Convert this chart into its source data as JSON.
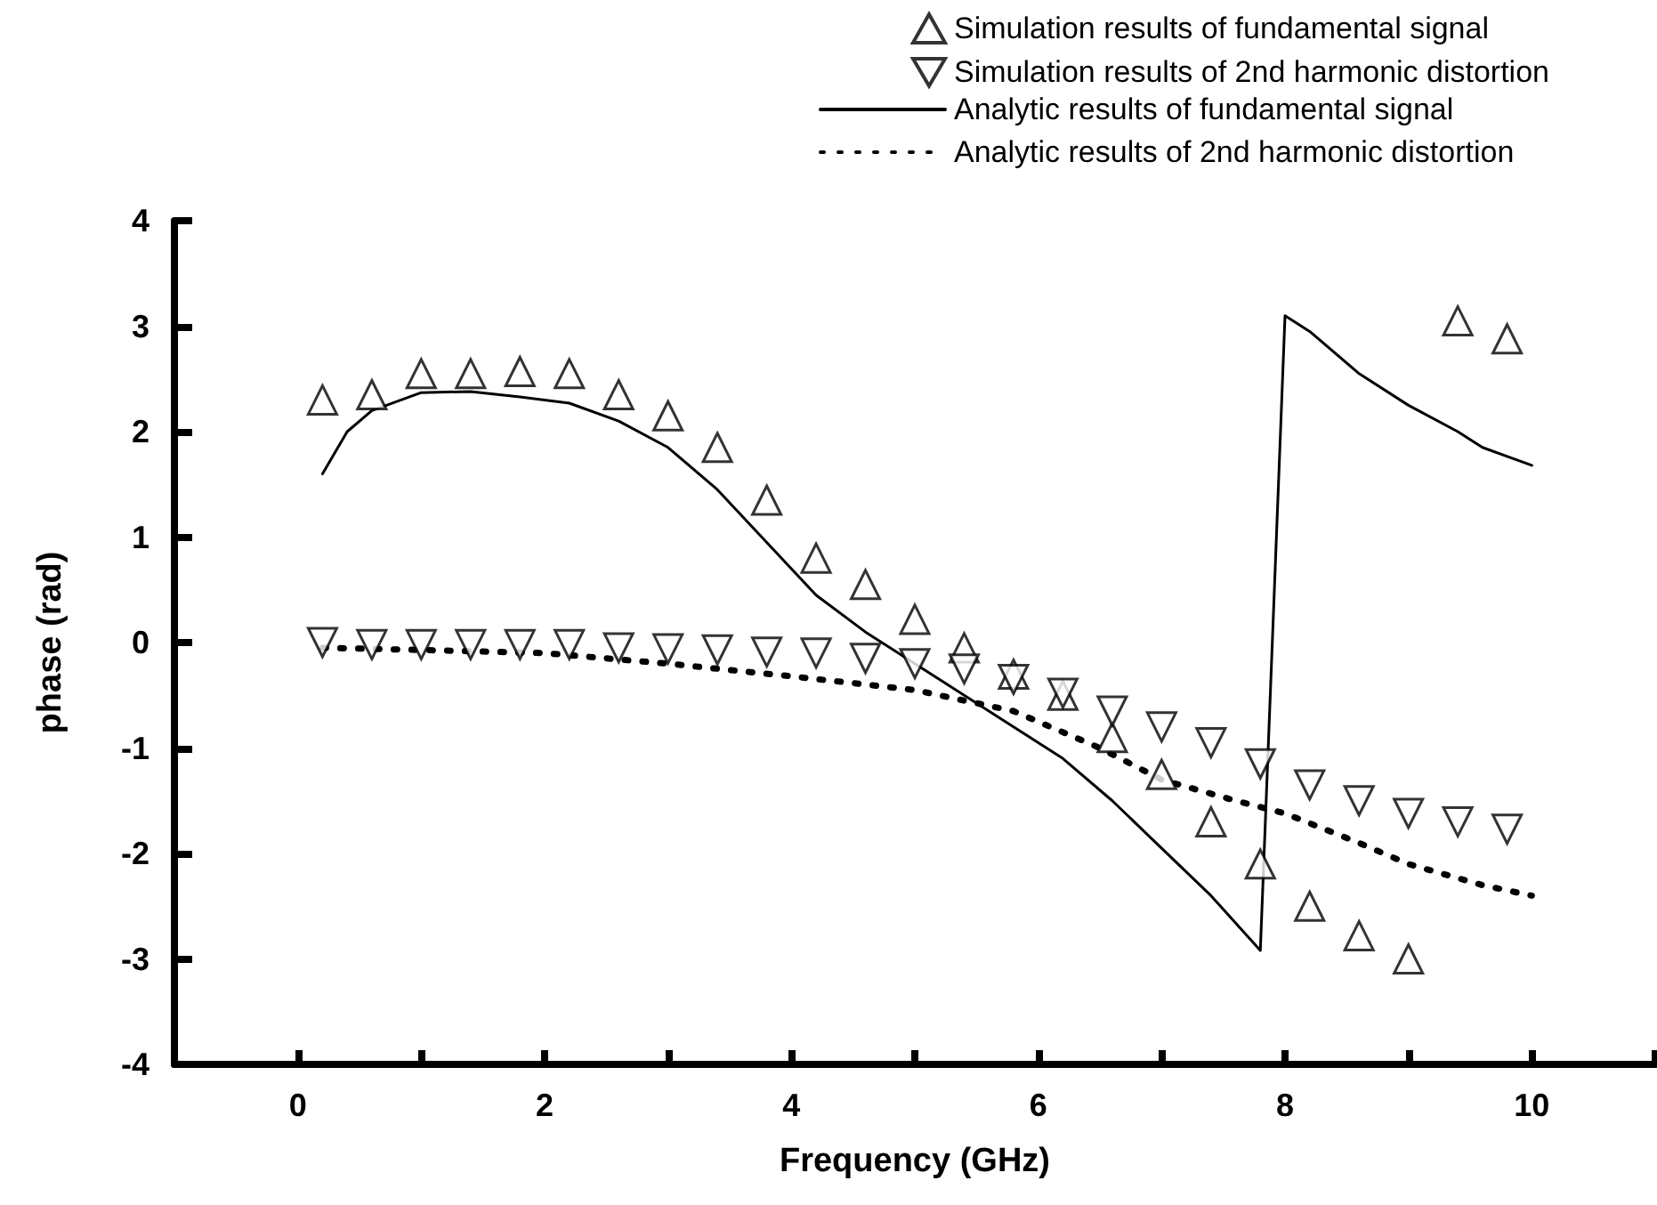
{
  "chart_data": {
    "type": "line",
    "xlabel": "Frequency (GHz)",
    "ylabel": "phase (rad)",
    "xlim": [
      -1,
      11
    ],
    "xticks": [
      0,
      {
        "value": 1,
        "label": null
      },
      2,
      {
        "value": 3,
        "label": null
      },
      4,
      {
        "value": 5,
        "label": null
      },
      6,
      {
        "value": 7,
        "label": null
      },
      8,
      {
        "value": 9,
        "label": null
      },
      10,
      {
        "value": 11,
        "label": null
      }
    ],
    "ylim": [
      -4,
      4
    ],
    "yticks": [
      -4,
      -3,
      -2,
      -1,
      0,
      1,
      2,
      3,
      4
    ],
    "grid": false,
    "legend": "top right",
    "series": [
      {
        "name": "Simulation results of fundamental signal",
        "type": "scatter",
        "marker": "triangle",
        "color": "#000000",
        "x": [
          0.2,
          0.6,
          1.0,
          1.4,
          1.8,
          2.2,
          2.6,
          3.0,
          3.4,
          3.8,
          4.2,
          4.6,
          5.0,
          5.4,
          5.8,
          6.2,
          6.6,
          7.0,
          7.4,
          7.8,
          8.2,
          8.6,
          9.0,
          9.4,
          9.8
        ],
        "values": [
          2.3,
          2.35,
          2.55,
          2.55,
          2.57,
          2.55,
          2.35,
          2.15,
          1.85,
          1.35,
          0.8,
          0.55,
          0.22,
          -0.05,
          -0.3,
          -0.5,
          -0.9,
          -1.25,
          -1.7,
          -2.1,
          -2.5,
          -2.78,
          -3.0,
          3.05,
          2.88
        ]
      },
      {
        "name": "Simulation results of 2nd harmonic distortion",
        "type": "scatter",
        "marker": "triangle-down",
        "color": "#000000",
        "x": [
          0.2,
          0.6,
          1.0,
          1.4,
          1.8,
          2.2,
          2.6,
          3.0,
          3.4,
          3.8,
          4.2,
          4.6,
          5.0,
          5.4,
          5.8,
          6.2,
          6.6,
          7.0,
          7.4,
          7.8,
          8.2,
          8.6,
          9.0,
          9.4,
          9.8
        ],
        "values": [
          0,
          -0.02,
          -0.02,
          -0.02,
          -0.02,
          -0.02,
          -0.05,
          -0.06,
          -0.07,
          -0.09,
          -0.1,
          -0.15,
          -0.2,
          -0.25,
          -0.35,
          -0.48,
          -0.65,
          -0.8,
          -0.95,
          -1.15,
          -1.35,
          -1.5,
          -1.62,
          -1.7,
          -1.77
        ]
      },
      {
        "name": "Analytic results of fundamental signal",
        "type": "line",
        "marker": "none",
        "line_style": "solid",
        "color": "#000000",
        "x": [
          0.2,
          0.4,
          0.6,
          1.0,
          1.4,
          1.8,
          2.2,
          2.6,
          3.0,
          3.4,
          3.8,
          4.2,
          4.6,
          5.0,
          5.4,
          5.8,
          6.2,
          6.6,
          7.0,
          7.4,
          7.8,
          8.0,
          8.2,
          8.6,
          9.0,
          9.4,
          9.6,
          10.0
        ],
        "values": [
          1.6,
          2.0,
          2.2,
          2.37,
          2.38,
          2.33,
          2.27,
          2.1,
          1.85,
          1.45,
          0.95,
          0.45,
          0.1,
          -0.2,
          -0.5,
          -0.8,
          -1.1,
          -1.5,
          -1.95,
          -2.4,
          -2.92,
          3.1,
          2.95,
          2.55,
          2.25,
          2.0,
          1.85,
          1.68
        ]
      },
      {
        "name": "Analytic results of 2nd harmonic distortion",
        "type": "line",
        "marker": "none",
        "line_style": "dotted",
        "color": "#000000",
        "x": [
          0.2,
          1.0,
          2.0,
          3.0,
          4.0,
          5.0,
          5.8,
          6.5,
          7.0,
          7.6,
          8.0,
          8.6,
          9.0,
          9.6,
          10.0
        ],
        "values": [
          -0.05,
          -0.07,
          -0.1,
          -0.2,
          -0.32,
          -0.45,
          -0.65,
          -1.0,
          -1.3,
          -1.5,
          -1.62,
          -1.9,
          -2.1,
          -2.3,
          -2.4
        ]
      }
    ]
  }
}
